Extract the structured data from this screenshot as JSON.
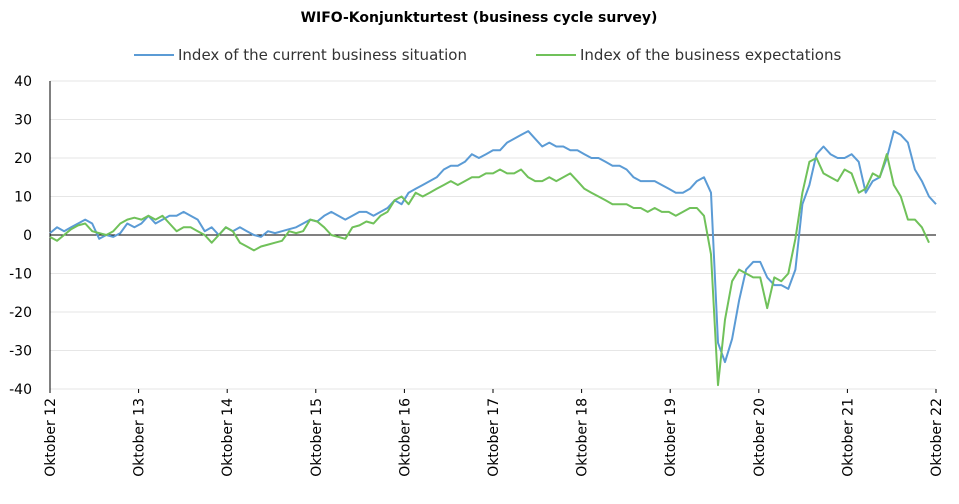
{
  "chart_data": {
    "type": "line",
    "title": "WIFO-Konjunkturtest (business cycle survey)",
    "xlabel": "",
    "ylabel": "",
    "ylim": [
      -40,
      40
    ],
    "yticks": [
      40,
      30,
      20,
      10,
      0,
      -10,
      -20,
      -30,
      -40
    ],
    "x_tick_labels": [
      "Oktober 12",
      "Oktober 13",
      "Oktober 14",
      "Oktober 15",
      "Oktober 16",
      "Oktober 17",
      "Oktober 18",
      "Oktober 19",
      "Oktober 20",
      "Oktober 21",
      "Oktober 22"
    ],
    "x_start": "2012-10",
    "x_end": "2022-10",
    "grid": "horizontal",
    "legend_position": "top",
    "series": [
      {
        "name": "Index of the current business situation",
        "color": "#5b9bd5",
        "values": [
          0.5,
          2,
          1,
          2,
          3,
          4,
          3,
          -1,
          0,
          -0.5,
          0.5,
          3,
          2,
          3,
          5,
          3,
          4,
          5,
          5,
          6,
          5,
          4,
          1,
          2,
          0,
          2,
          1,
          2,
          1,
          0,
          -0.5,
          1,
          0.5,
          1,
          1.5,
          2,
          3,
          4,
          3.5,
          5,
          6,
          5,
          4,
          5,
          6,
          6,
          5,
          6,
          7,
          9,
          8,
          11,
          12,
          13,
          14,
          15,
          17,
          18,
          18,
          19,
          21,
          20,
          21,
          22,
          22,
          24,
          25,
          26,
          27,
          25,
          23,
          24,
          23,
          23,
          22,
          22,
          21,
          20,
          20,
          19,
          18,
          18,
          17,
          15,
          14,
          14,
          14,
          13,
          12,
          11,
          11,
          12,
          14,
          15,
          11,
          -28,
          -33,
          -27,
          -17,
          -9,
          -7,
          -7,
          -11,
          -13,
          -13,
          -14,
          -9,
          8,
          13,
          21,
          23,
          21,
          20,
          20,
          21,
          19,
          11,
          14,
          15,
          20,
          27,
          26,
          24,
          17,
          14,
          10,
          8
        ]
      },
      {
        "name": "Index of the business expectations",
        "color": "#70c15a",
        "values": [
          -0.5,
          -1.5,
          0,
          1.5,
          2.5,
          3,
          1,
          0.5,
          0,
          1,
          3,
          4,
          4.5,
          4,
          5,
          4,
          5,
          3,
          1,
          2,
          2,
          1,
          0,
          -2,
          0,
          2,
          1,
          -2,
          -3,
          -4,
          -3,
          -2.5,
          -2,
          -1.5,
          1,
          0.5,
          1,
          4,
          3.5,
          2,
          0,
          -0.5,
          -1,
          2,
          2.5,
          3.5,
          3,
          5,
          6,
          9,
          10,
          8,
          11,
          10,
          11,
          12,
          13,
          14,
          13,
          14,
          15,
          15,
          16,
          16,
          17,
          16,
          16,
          17,
          15,
          14,
          14,
          15,
          14,
          15,
          16,
          14,
          12,
          11,
          10,
          9,
          8,
          8,
          8,
          7,
          7,
          6,
          7,
          6,
          6,
          5,
          6,
          7,
          7,
          5,
          -5,
          -39,
          -22,
          -12,
          -9,
          -10,
          -11,
          -11,
          -19,
          -11,
          -12,
          -10,
          -1,
          11,
          19,
          20,
          16,
          15,
          14,
          17,
          16,
          11,
          12,
          16,
          15,
          21,
          13,
          10,
          4,
          4,
          2,
          -2
        ]
      }
    ]
  }
}
